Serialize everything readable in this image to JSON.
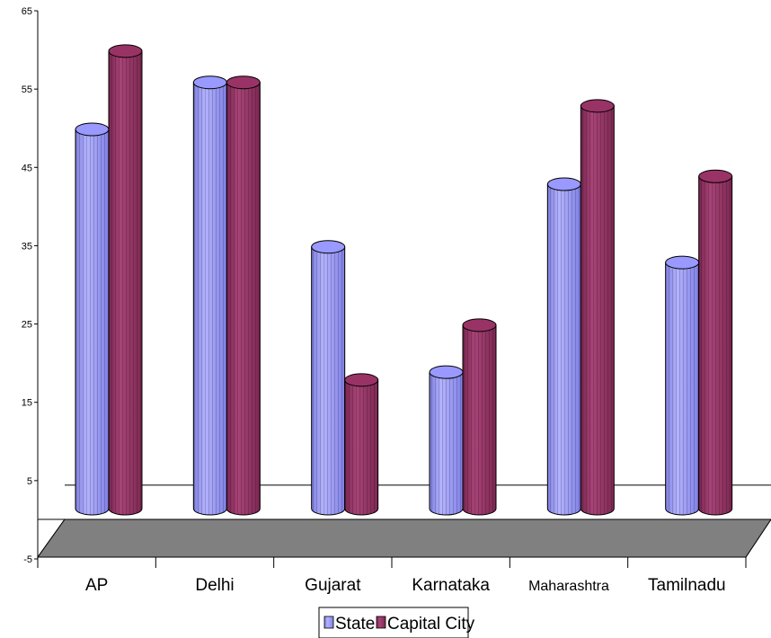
{
  "chart_data": {
    "type": "bar",
    "style": "3d-cylinder",
    "title": "",
    "xlabel": "",
    "ylabel": "",
    "categories": [
      "AP",
      "Delhi",
      "Gujarat",
      "Karnataka",
      "Maharashtra",
      "Tamilnadu"
    ],
    "series": [
      {
        "name": "State",
        "color": "#9999ff",
        "values": [
          51,
          57,
          36,
          20,
          44,
          34
        ]
      },
      {
        "name": "Capital City",
        "color": "#993366",
        "values": [
          61,
          57,
          19,
          26,
          54,
          45
        ]
      }
    ],
    "ylim": [
      -5,
      65
    ],
    "yticks": [
      65,
      55,
      45,
      35,
      25,
      15,
      5,
      -5
    ],
    "ytick_labels": [
      "65",
      "55",
      "45",
      "35",
      "25",
      "15",
      "5",
      "-5"
    ],
    "grid": false,
    "legend_position": "bottom"
  },
  "colors": {
    "floor": "#808080",
    "axis": "#000000"
  }
}
